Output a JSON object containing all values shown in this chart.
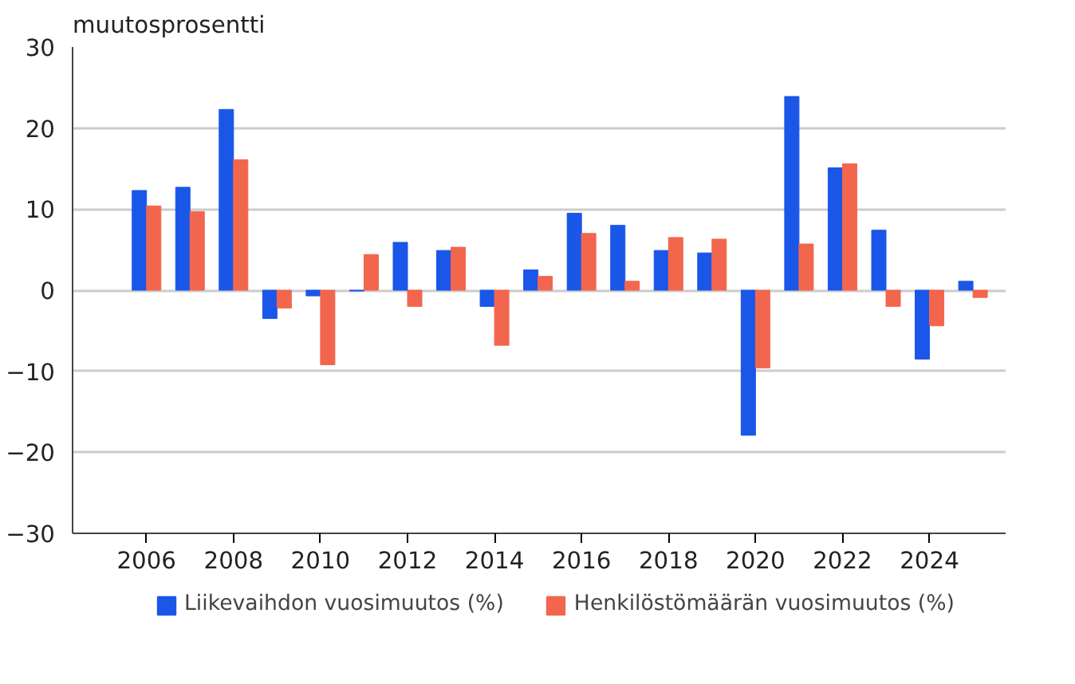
{
  "chart_data": {
    "type": "bar",
    "ylabel": "muutosprosentti",
    "x": [
      2006,
      2007,
      2008,
      2009,
      2010,
      2011,
      2012,
      2013,
      2014,
      2015,
      2016,
      2017,
      2018,
      2019,
      2020,
      2021,
      2022,
      2023,
      2024,
      2025
    ],
    "series": [
      {
        "name": "Liikevaihdon vuosimuutos (%)",
        "color": "#1a56e8",
        "values": [
          12.3,
          12.7,
          22.3,
          -3.5,
          -0.7,
          -0.1,
          5.9,
          4.9,
          -2.0,
          2.5,
          9.5,
          8.0,
          4.9,
          4.6,
          -17.9,
          23.9,
          15.1,
          7.4,
          -8.5,
          1.1
        ]
      },
      {
        "name": "Henkilöstömäärän vuosimuutos (%)",
        "color": "#f2664e",
        "values": [
          10.4,
          9.7,
          16.1,
          -2.2,
          -9.2,
          4.4,
          -2.0,
          5.3,
          -6.8,
          1.7,
          7.0,
          1.1,
          6.5,
          6.3,
          -9.6,
          5.7,
          15.6,
          -2.0,
          -4.4,
          -0.9
        ]
      }
    ],
    "xlim": [
      2004.3,
      2025.75
    ],
    "xticks": [
      2006,
      2008,
      2010,
      2012,
      2014,
      2016,
      2018,
      2020,
      2022,
      2024
    ],
    "ylim": [
      -30,
      30
    ],
    "yticks": [
      -30,
      -20,
      -10,
      0,
      10,
      20,
      30
    ],
    "grid": "y",
    "legend": "bottom"
  }
}
